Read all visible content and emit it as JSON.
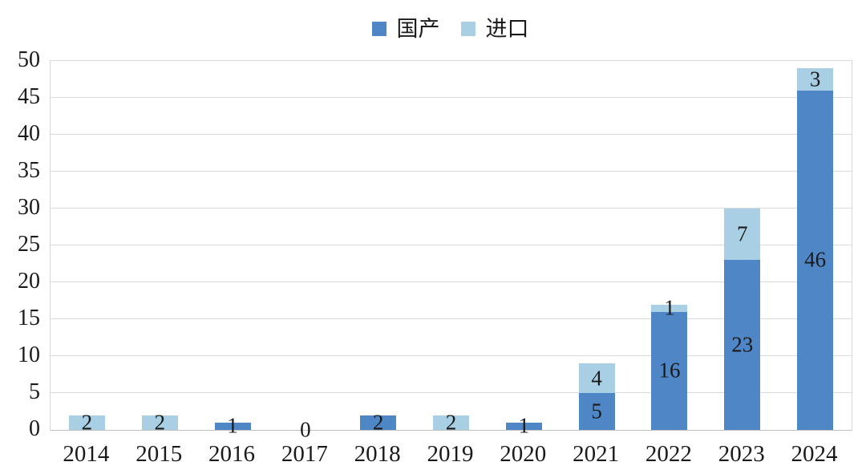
{
  "chart_data": {
    "type": "bar",
    "stacked": true,
    "categories": [
      "2014",
      "2015",
      "2016",
      "2017",
      "2018",
      "2019",
      "2020",
      "2021",
      "2022",
      "2023",
      "2024"
    ],
    "series": [
      {
        "name": "国产",
        "color": "#4F86C6",
        "values": [
          0,
          0,
          1,
          0,
          2,
          0,
          1,
          5,
          16,
          23,
          46
        ]
      },
      {
        "name": "进口",
        "color": "#A9CFE5",
        "values": [
          2,
          2,
          0,
          0,
          0,
          2,
          0,
          4,
          1,
          7,
          3
        ]
      }
    ],
    "segment_labels_visible": "values greater than zero are labeled on each segment",
    "zero_total_label": "0",
    "title": "",
    "xlabel": "",
    "ylabel": "",
    "ylim": [
      0,
      50
    ],
    "ytick_step": 5,
    "grid": true,
    "legend_position": "top-center"
  },
  "legend": {
    "items": [
      {
        "label": "国产",
        "color": "#4F86C6"
      },
      {
        "label": "进口",
        "color": "#A9CFE5"
      }
    ]
  },
  "colors": {
    "grid": "#D9D9D9",
    "axis_line": "#BFBFBF",
    "text": "#1A1A1A",
    "background": "#FFFFFF"
  }
}
